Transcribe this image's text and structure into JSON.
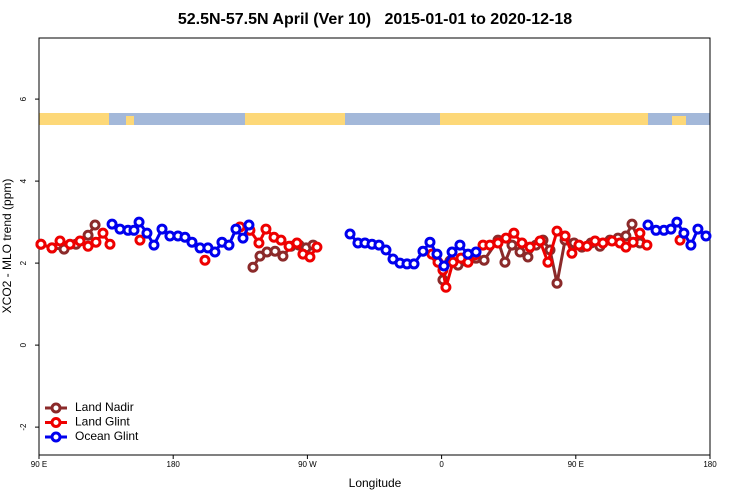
{
  "chart_data": {
    "type": "line",
    "title": "52.5N-57.5N April (Ver 10)   2015-01-01 to 2020-12-18",
    "x_label": "Longitude",
    "y_label": "XCO2 - MLO trend (ppm)",
    "xlim": [
      90,
      540
    ],
    "ylim": [
      -2.68,
      7.49
    ],
    "xticks": [
      {
        "value": 90,
        "label": "90 E"
      },
      180,
      {
        "value": 270,
        "label": "90 W"
      },
      {
        "value": 360,
        "label": "0"
      },
      {
        "value": 450,
        "label": "90 E"
      },
      {
        "value": 540,
        "label": "180"
      }
    ],
    "yticks": [
      -2,
      0,
      2,
      4,
      6
    ],
    "legend": "bottom-left",
    "series": [
      {
        "name": "Land Nadir",
        "color": "#8b2a2a",
        "x": [
          91.3,
          98.7,
          106.8,
          114.8,
          122.9,
          127.6,
          null,
          233.5,
          238.2,
          242.9,
          248.3,
          253.6,
          259.0,
          264.4,
          269.1,
          273.8,
          null,
          356.2,
          360.9,
          365.6,
          371.0,
          376.4,
          383.1,
          388.5,
          397.8,
          402.5,
          407.2,
          412.6,
          417.9,
          423.3,
          428.0,
          432.7,
          437.4,
          442.8,
          448.8,
          454.1,
          460.2,
          466.2,
          472.9,
          478.3,
          483.6,
          487.7,
          493.0
        ],
        "values": [
          2.46,
          2.37,
          2.34,
          2.46,
          2.68,
          2.93,
          null,
          1.9,
          2.17,
          2.27,
          2.29,
          2.17,
          2.41,
          2.44,
          2.37,
          2.44,
          null,
          2.17,
          1.59,
          2.05,
          1.95,
          2.05,
          2.12,
          2.07,
          2.56,
          2.02,
          2.44,
          2.27,
          2.15,
          2.44,
          2.56,
          2.32,
          1.51,
          2.56,
          2.49,
          2.39,
          2.49,
          2.41,
          2.56,
          2.61,
          2.66,
          2.95,
          2.49
        ]
      },
      {
        "name": "Land Glint",
        "color": "#ee0000",
        "x": [
          91.3,
          98.7,
          104.1,
          110.8,
          117.5,
          122.9,
          128.2,
          132.9,
          137.6,
          null,
          157.7,
          null,
          201.3,
          null,
          224.8,
          231.5,
          237.5,
          242.2,
          247.6,
          252.3,
          257.7,
          263.0,
          267.0,
          271.7,
          276.4,
          null,
          353.5,
          357.6,
          360.9,
          362.9,
          367.6,
          373.0,
          377.7,
          382.4,
          387.8,
          392.4,
          397.8,
          403.2,
          408.5,
          413.9,
          419.3,
          426.0,
          431.3,
          437.4,
          442.8,
          447.4,
          452.1,
          457.5,
          462.9,
          468.2,
          474.3,
          479.6,
          483.6,
          488.4,
          493.0,
          497.7,
          null,
          519.9
        ],
        "values": [
          2.46,
          2.37,
          2.54,
          2.46,
          2.54,
          2.41,
          2.51,
          2.73,
          2.46,
          null,
          2.56,
          null,
          2.07,
          null,
          2.88,
          2.8,
          2.49,
          2.83,
          2.63,
          2.56,
          2.41,
          2.49,
          2.22,
          2.15,
          2.39,
          null,
          2.22,
          2.02,
          1.83,
          1.41,
          2.02,
          2.12,
          2.02,
          2.2,
          2.44,
          2.44,
          2.49,
          2.61,
          2.73,
          2.49,
          2.39,
          2.54,
          2.02,
          2.78,
          2.66,
          2.24,
          2.44,
          2.41,
          2.54,
          2.49,
          2.54,
          2.49,
          2.39,
          2.51,
          2.73,
          2.44,
          null,
          2.56
        ]
      },
      {
        "name": "Ocean Glint",
        "color": "#0000ee",
        "x": [
          139.0,
          144.3,
          149.7,
          153.7,
          157.1,
          162.4,
          167.1,
          172.5,
          177.8,
          183.2,
          187.9,
          192.6,
          198.0,
          203.3,
          208.0,
          212.7,
          217.4,
          222.1,
          226.8,
          230.8,
          null,
          298.6,
          303.9,
          308.6,
          313.3,
          318.0,
          322.7,
          327.4,
          332.1,
          336.8,
          341.5,
          347.5,
          352.2,
          356.9,
          361.6,
          367.0,
          372.3,
          377.7,
          383.1,
          null,
          498.4,
          503.8,
          509.1,
          513.8,
          517.8,
          522.5,
          527.2,
          531.9,
          537.3
        ],
        "values": [
          2.95,
          2.83,
          2.8,
          2.8,
          3.0,
          2.73,
          2.44,
          2.83,
          2.66,
          2.66,
          2.63,
          2.51,
          2.37,
          2.37,
          2.27,
          2.51,
          2.44,
          2.83,
          2.61,
          2.93,
          null,
          2.71,
          2.49,
          2.49,
          2.46,
          2.44,
          2.32,
          2.1,
          2.0,
          1.98,
          1.98,
          2.29,
          2.51,
          2.22,
          1.93,
          2.27,
          2.44,
          2.22,
          2.27,
          null,
          2.93,
          2.8,
          2.8,
          2.83,
          3.0,
          2.73,
          2.44,
          2.83,
          2.66
        ]
      }
    ]
  }
}
